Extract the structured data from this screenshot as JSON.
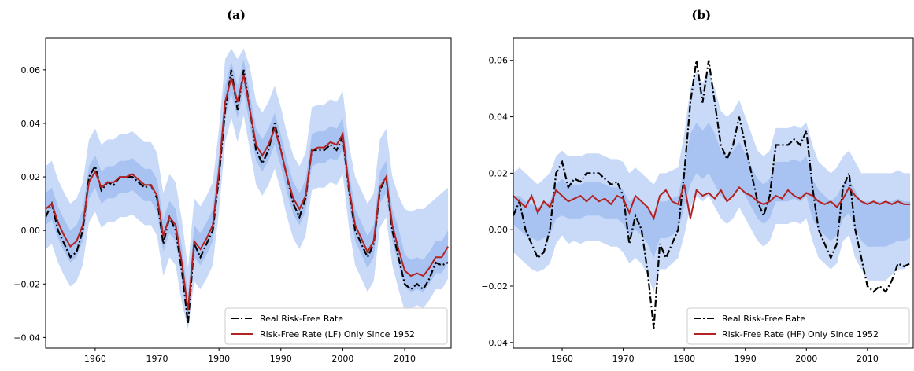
{
  "chart_data": [
    {
      "type": "line",
      "title": "(a)",
      "legend": "lower right",
      "x": [
        1952,
        1953,
        1954,
        1955,
        1956,
        1957,
        1958,
        1959,
        1960,
        1961,
        1962,
        1963,
        1964,
        1965,
        1966,
        1967,
        1968,
        1969,
        1970,
        1971,
        1972,
        1973,
        1974,
        1975,
        1976,
        1977,
        1978,
        1979,
        1980,
        1981,
        1982,
        1983,
        1984,
        1985,
        1986,
        1987,
        1988,
        1989,
        1990,
        1991,
        1992,
        1993,
        1994,
        1995,
        1996,
        1997,
        1998,
        1999,
        2000,
        2001,
        2002,
        2003,
        2004,
        2005,
        2006,
        2007,
        2008,
        2009,
        2010,
        2011,
        2012,
        2013,
        2014,
        2015,
        2016,
        2017
      ],
      "xlim": [
        1952,
        2017.5
      ],
      "ylim": [
        -0.044,
        0.072
      ],
      "xticks": [
        1960,
        1970,
        1980,
        1990,
        2000,
        2010
      ],
      "yticks": [
        {
          "value": -0.04,
          "label": "−0.04"
        },
        {
          "value": -0.02,
          "label": "−0.02"
        },
        {
          "value": 0,
          "label": "0.00"
        },
        0.02,
        0.04,
        0.06
      ],
      "bands": [
        {
          "color": "#c9daf8",
          "lower": [
            -0.007,
            -0.005,
            -0.012,
            -0.017,
            -0.021,
            -0.019,
            -0.013,
            0.003,
            0.007,
            0.001,
            0.003,
            0.003,
            0.005,
            0.005,
            0.006,
            0.004,
            0.002,
            0.002,
            -0.002,
            -0.017,
            -0.01,
            -0.013,
            -0.027,
            -0.037,
            -0.019,
            -0.022,
            -0.018,
            -0.013,
            0.007,
            0.033,
            0.042,
            0.033,
            0.043,
            0.03,
            0.017,
            0.013,
            0.017,
            0.023,
            0.015,
            0.005,
            -0.003,
            -0.007,
            -0.002,
            0.015,
            0.016,
            0.016,
            0.018,
            0.017,
            0.021,
            0.001,
            -0.013,
            -0.018,
            -0.023,
            -0.019,
            0.001,
            0.005,
            -0.013,
            -0.022,
            -0.03,
            -0.029,
            -0.028,
            -0.029,
            -0.026,
            -0.022,
            -0.022,
            -0.018
          ],
          "upper": [
            0.024,
            0.026,
            0.019,
            0.014,
            0.01,
            0.012,
            0.018,
            0.034,
            0.038,
            0.032,
            0.034,
            0.034,
            0.036,
            0.036,
            0.037,
            0.035,
            0.033,
            0.033,
            0.029,
            0.014,
            0.021,
            0.018,
            0.004,
            -0.014,
            0.012,
            0.009,
            0.013,
            0.018,
            0.038,
            0.064,
            0.068,
            0.064,
            0.068,
            0.061,
            0.048,
            0.044,
            0.048,
            0.054,
            0.046,
            0.036,
            0.028,
            0.024,
            0.029,
            0.046,
            0.047,
            0.047,
            0.049,
            0.048,
            0.052,
            0.032,
            0.02,
            0.015,
            0.01,
            0.014,
            0.034,
            0.038,
            0.02,
            0.013,
            0.008,
            0.007,
            0.008,
            0.008,
            0.01,
            0.012,
            0.014,
            0.016
          ]
        },
        {
          "color": "#a8c3f2",
          "lower": [
            0.002,
            0.004,
            -0.003,
            -0.008,
            -0.012,
            -0.01,
            -0.004,
            0.012,
            0.016,
            0.01,
            0.012,
            0.012,
            0.014,
            0.014,
            0.015,
            0.013,
            0.011,
            0.011,
            0.007,
            -0.008,
            -0.001,
            -0.004,
            -0.018,
            -0.036,
            -0.01,
            -0.013,
            -0.009,
            -0.004,
            0.016,
            0.042,
            0.051,
            0.042,
            0.052,
            0.039,
            0.026,
            0.022,
            0.026,
            0.032,
            0.024,
            0.014,
            0.006,
            0.002,
            0.007,
            0.024,
            0.025,
            0.025,
            0.027,
            0.026,
            0.03,
            0.01,
            -0.004,
            -0.009,
            -0.014,
            -0.01,
            0.01,
            0.014,
            -0.004,
            -0.013,
            -0.021,
            -0.023,
            -0.022,
            -0.023,
            -0.02,
            -0.016,
            -0.016,
            -0.012
          ],
          "upper": [
            0.014,
            0.016,
            0.009,
            0.004,
            0.0,
            0.002,
            0.008,
            0.024,
            0.028,
            0.022,
            0.024,
            0.024,
            0.026,
            0.026,
            0.027,
            0.025,
            0.023,
            0.023,
            0.019,
            0.004,
            0.011,
            0.008,
            -0.006,
            -0.024,
            0.002,
            -0.001,
            0.003,
            0.008,
            0.028,
            0.054,
            0.063,
            0.054,
            0.064,
            0.051,
            0.038,
            0.034,
            0.038,
            0.044,
            0.036,
            0.026,
            0.018,
            0.014,
            0.019,
            0.036,
            0.037,
            0.037,
            0.039,
            0.038,
            0.042,
            0.022,
            0.008,
            0.003,
            -0.002,
            0.002,
            0.022,
            0.026,
            0.008,
            0.001,
            -0.009,
            -0.011,
            -0.01,
            -0.011,
            -0.008,
            -0.004,
            -0.004,
            0.0
          ]
        }
      ],
      "series": [
        {
          "name": "Real Risk-Free Rate",
          "color": "#000000",
          "dash": "dashdot",
          "values": [
            0.005,
            0.01,
            0.0,
            -0.005,
            -0.01,
            -0.008,
            0.0,
            0.02,
            0.024,
            0.015,
            0.018,
            0.017,
            0.02,
            0.02,
            0.02,
            0.018,
            0.016,
            0.017,
            0.012,
            -0.005,
            0.005,
            0.0,
            -0.015,
            -0.035,
            -0.005,
            -0.01,
            -0.005,
            0.0,
            0.02,
            0.045,
            0.06,
            0.045,
            0.06,
            0.045,
            0.03,
            0.025,
            0.03,
            0.04,
            0.03,
            0.02,
            0.01,
            0.005,
            0.012,
            0.03,
            0.03,
            0.03,
            0.032,
            0.03,
            0.035,
            0.015,
            0.0,
            -0.005,
            -0.01,
            -0.005,
            0.015,
            0.02,
            0.0,
            -0.01,
            -0.02,
            -0.022,
            -0.02,
            -0.022,
            -0.018,
            -0.012,
            -0.013,
            -0.012
          ]
        },
        {
          "name": "Risk-Free Rate (LF) Only Since 1952",
          "color": "#b22222",
          "dash": "solid",
          "values": [
            0.008,
            0.01,
            0.003,
            -0.002,
            -0.006,
            -0.004,
            0.002,
            0.018,
            0.022,
            0.016,
            0.018,
            0.018,
            0.02,
            0.02,
            0.021,
            0.019,
            0.017,
            0.017,
            0.013,
            -0.002,
            0.005,
            0.002,
            -0.012,
            -0.03,
            -0.004,
            -0.007,
            -0.003,
            0.002,
            0.022,
            0.048,
            0.057,
            0.048,
            0.058,
            0.045,
            0.032,
            0.028,
            0.032,
            0.038,
            0.03,
            0.02,
            0.012,
            0.008,
            0.013,
            0.03,
            0.031,
            0.031,
            0.033,
            0.032,
            0.036,
            0.016,
            0.002,
            -0.003,
            -0.008,
            -0.004,
            0.016,
            0.02,
            0.002,
            -0.007,
            -0.015,
            -0.017,
            -0.016,
            -0.017,
            -0.014,
            -0.01,
            -0.01,
            -0.006
          ]
        }
      ]
    },
    {
      "type": "line",
      "title": "(b)",
      "legend": "lower right",
      "x": [
        1952,
        1953,
        1954,
        1955,
        1956,
        1957,
        1958,
        1959,
        1960,
        1961,
        1962,
        1963,
        1964,
        1965,
        1966,
        1967,
        1968,
        1969,
        1970,
        1971,
        1972,
        1973,
        1974,
        1975,
        1976,
        1977,
        1978,
        1979,
        1980,
        1981,
        1982,
        1983,
        1984,
        1985,
        1986,
        1987,
        1988,
        1989,
        1990,
        1991,
        1992,
        1993,
        1994,
        1995,
        1996,
        1997,
        1998,
        1999,
        2000,
        2001,
        2002,
        2003,
        2004,
        2005,
        2006,
        2007,
        2008,
        2009,
        2010,
        2011,
        2012,
        2013,
        2014,
        2015,
        2016,
        2017
      ],
      "xlim": [
        1952,
        2017.5
      ],
      "ylim": [
        -0.042,
        0.068
      ],
      "xticks": [
        1960,
        1970,
        1980,
        1990,
        2000,
        2010
      ],
      "yticks": [
        {
          "value": -0.04,
          "label": "−0.04"
        },
        {
          "value": -0.02,
          "label": "−0.02"
        },
        {
          "value": 0,
          "label": "0.00"
        },
        0.02,
        0.04,
        0.06
      ],
      "bands": [
        {
          "color": "#c9daf8",
          "lower": [
            -0.008,
            -0.01,
            -0.012,
            -0.014,
            -0.015,
            -0.014,
            -0.012,
            -0.005,
            -0.002,
            -0.005,
            -0.004,
            -0.005,
            -0.004,
            -0.004,
            -0.004,
            -0.005,
            -0.006,
            -0.006,
            -0.008,
            -0.012,
            -0.01,
            -0.012,
            -0.016,
            -0.022,
            -0.014,
            -0.014,
            -0.012,
            -0.01,
            -0.002,
            0.008,
            0.012,
            0.01,
            0.012,
            0.008,
            0.004,
            0.002,
            0.004,
            0.008,
            0.004,
            0.0,
            -0.004,
            -0.006,
            -0.004,
            0.002,
            0.002,
            0.002,
            0.003,
            0.002,
            0.004,
            -0.004,
            -0.01,
            -0.012,
            -0.014,
            -0.012,
            -0.004,
            -0.002,
            -0.01,
            -0.014,
            -0.018,
            -0.018,
            -0.018,
            -0.018,
            -0.016,
            -0.014,
            -0.014,
            -0.012
          ],
          "upper": [
            0.02,
            0.022,
            0.02,
            0.018,
            0.016,
            0.018,
            0.02,
            0.026,
            0.028,
            0.026,
            0.026,
            0.026,
            0.027,
            0.027,
            0.027,
            0.026,
            0.025,
            0.025,
            0.024,
            0.02,
            0.022,
            0.02,
            0.018,
            0.016,
            0.02,
            0.02,
            0.021,
            0.022,
            0.034,
            0.05,
            0.056,
            0.052,
            0.056,
            0.05,
            0.042,
            0.04,
            0.042,
            0.046,
            0.04,
            0.034,
            0.028,
            0.026,
            0.028,
            0.036,
            0.036,
            0.036,
            0.037,
            0.036,
            0.038,
            0.03,
            0.024,
            0.022,
            0.02,
            0.022,
            0.026,
            0.028,
            0.024,
            0.02,
            0.02,
            0.02,
            0.02,
            0.02,
            0.02,
            0.021,
            0.02,
            0.02
          ]
        },
        {
          "color": "#a8c3f2",
          "lower": [
            0.002,
            0.0,
            -0.002,
            -0.003,
            -0.004,
            -0.003,
            -0.002,
            0.004,
            0.005,
            0.004,
            0.004,
            0.004,
            0.005,
            0.005,
            0.005,
            0.004,
            0.004,
            0.004,
            0.002,
            -0.002,
            0.0,
            -0.002,
            -0.005,
            -0.01,
            -0.003,
            -0.003,
            -0.002,
            0.0,
            0.008,
            0.016,
            0.02,
            0.018,
            0.02,
            0.016,
            0.012,
            0.01,
            0.012,
            0.015,
            0.012,
            0.008,
            0.004,
            0.002,
            0.004,
            0.01,
            0.01,
            0.01,
            0.011,
            0.01,
            0.012,
            0.004,
            0.0,
            -0.002,
            -0.004,
            -0.002,
            0.004,
            0.006,
            0.0,
            -0.004,
            -0.006,
            -0.006,
            -0.006,
            -0.006,
            -0.005,
            -0.004,
            -0.004,
            -0.003
          ],
          "upper": [
            0.012,
            0.012,
            0.01,
            0.009,
            0.008,
            0.009,
            0.01,
            0.016,
            0.018,
            0.016,
            0.016,
            0.016,
            0.017,
            0.017,
            0.017,
            0.016,
            0.015,
            0.015,
            0.014,
            0.01,
            0.012,
            0.01,
            0.008,
            0.004,
            0.01,
            0.01,
            0.011,
            0.012,
            0.022,
            0.034,
            0.038,
            0.035,
            0.038,
            0.034,
            0.028,
            0.026,
            0.028,
            0.031,
            0.027,
            0.022,
            0.018,
            0.016,
            0.018,
            0.024,
            0.024,
            0.024,
            0.025,
            0.024,
            0.026,
            0.018,
            0.014,
            0.012,
            0.01,
            0.012,
            0.016,
            0.018,
            0.014,
            0.01,
            0.01,
            0.01,
            0.01,
            0.01,
            0.01,
            0.011,
            0.01,
            0.01
          ]
        }
      ],
      "series": [
        {
          "name": "Real Risk-Free Rate",
          "color": "#000000",
          "dash": "dashdot",
          "values": [
            0.005,
            0.01,
            0.0,
            -0.005,
            -0.01,
            -0.008,
            0.0,
            0.02,
            0.024,
            0.015,
            0.018,
            0.017,
            0.02,
            0.02,
            0.02,
            0.018,
            0.016,
            0.017,
            0.012,
            -0.005,
            0.005,
            0.0,
            -0.015,
            -0.035,
            -0.005,
            -0.01,
            -0.005,
            0.0,
            0.02,
            0.045,
            0.06,
            0.045,
            0.06,
            0.045,
            0.03,
            0.025,
            0.03,
            0.04,
            0.03,
            0.02,
            0.01,
            0.005,
            0.012,
            0.03,
            0.03,
            0.03,
            0.032,
            0.03,
            0.035,
            0.015,
            0.0,
            -0.005,
            -0.01,
            -0.005,
            0.015,
            0.02,
            0.0,
            -0.01,
            -0.02,
            -0.022,
            -0.02,
            -0.022,
            -0.018,
            -0.012,
            -0.013,
            -0.012
          ]
        },
        {
          "name": "Risk-Free Rate (HF) Only Since 1952",
          "color": "#b22222",
          "dash": "solid",
          "values": [
            0.012,
            0.01,
            0.008,
            0.012,
            0.006,
            0.01,
            0.008,
            0.014,
            0.012,
            0.01,
            0.011,
            0.012,
            0.01,
            0.012,
            0.01,
            0.011,
            0.009,
            0.012,
            0.011,
            0.006,
            0.012,
            0.01,
            0.008,
            0.004,
            0.012,
            0.014,
            0.01,
            0.009,
            0.016,
            0.004,
            0.014,
            0.012,
            0.013,
            0.011,
            0.014,
            0.01,
            0.012,
            0.015,
            0.013,
            0.012,
            0.01,
            0.009,
            0.01,
            0.012,
            0.011,
            0.014,
            0.012,
            0.011,
            0.013,
            0.012,
            0.01,
            0.009,
            0.01,
            0.008,
            0.011,
            0.015,
            0.012,
            0.01,
            0.009,
            0.01,
            0.009,
            0.01,
            0.009,
            0.01,
            0.009,
            0.009
          ]
        }
      ]
    }
  ]
}
